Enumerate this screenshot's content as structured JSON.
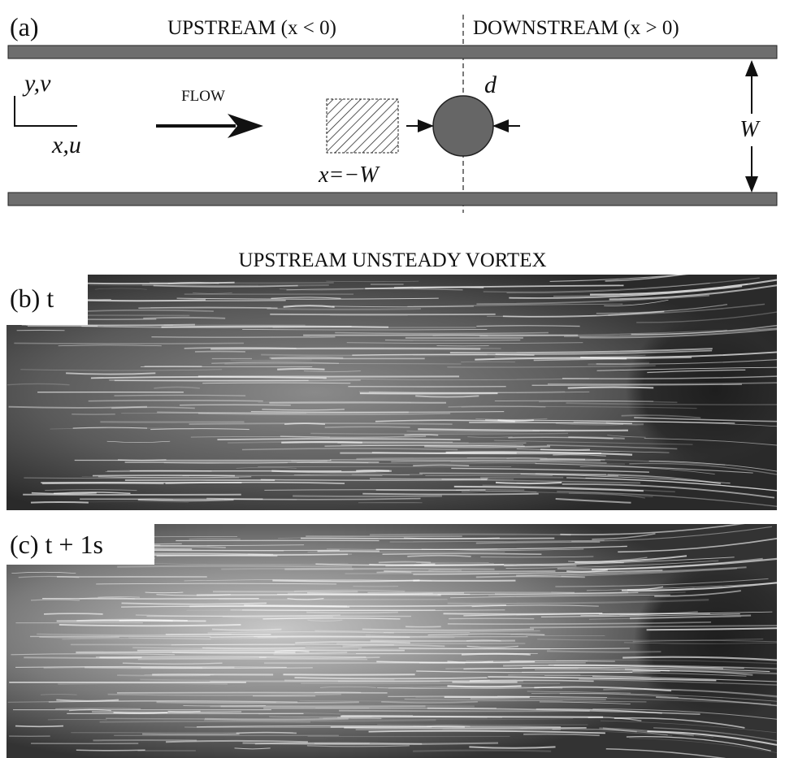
{
  "panel_a": {
    "label": "(a)",
    "upstream": "UPSTREAM (x < 0)",
    "downstream": "DOWNSTREAM (x > 0)",
    "axis_y": "y,v",
    "axis_x": "x,u",
    "flow": "FLOW",
    "diameter": "d",
    "width": "W",
    "position": "x=−W"
  },
  "title": "UPSTREAM UNSTEADY VORTEX",
  "panel_b": {
    "label": "(b) t"
  },
  "panel_c": {
    "label": "(c) t + 1s"
  }
}
